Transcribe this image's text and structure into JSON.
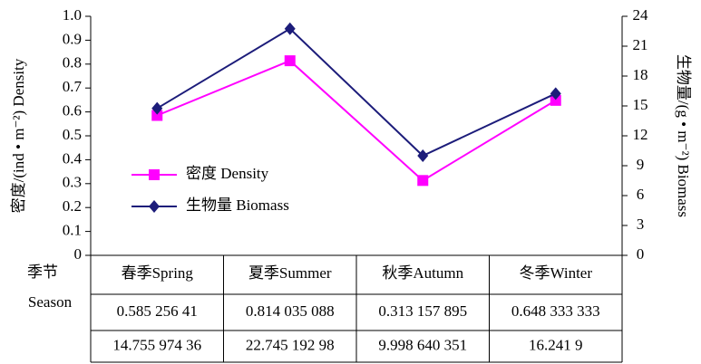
{
  "chart_data": {
    "type": "line",
    "categories": [
      "春季Spring",
      "夏季Summer",
      "秋季Autumn",
      "冬季Winter"
    ],
    "series": [
      {
        "name": "密度 Density",
        "color": "#ff00ff",
        "marker": "square",
        "axis": "y",
        "values": [
          0.58525641,
          0.814035088,
          0.313157895,
          0.648333333
        ],
        "value_labels": [
          "0.585 256 41",
          "0.814 035 088",
          "0.313 157 895",
          "0.648 333 333"
        ]
      },
      {
        "name": "生物量 Biomass",
        "color": "#1c1c7a",
        "marker": "diamond",
        "axis": "y2",
        "values": [
          14.75597436,
          22.74519298,
          9.998640351,
          16.2419
        ],
        "value_labels": [
          "14.755 974 36",
          "22.745 192 98",
          "9.998 640 351",
          "16.241 9"
        ]
      }
    ],
    "ylabel": "密度/(ind • m⁻²) Density",
    "y2label": "生物量/(g • m⁻²) Biomass",
    "ylim": [
      0,
      1
    ],
    "yticks": [
      0,
      0.1,
      0.2,
      0.3,
      0.4,
      0.5,
      0.6,
      0.7,
      0.8,
      0.9,
      {
        "value": 1,
        "label": "1.0"
      }
    ],
    "y2lim": [
      0,
      24
    ],
    "y2ticks": [
      0,
      3,
      6,
      9,
      12,
      15,
      18,
      21,
      24
    ],
    "table_header": [
      "季节",
      "Season"
    ]
  }
}
